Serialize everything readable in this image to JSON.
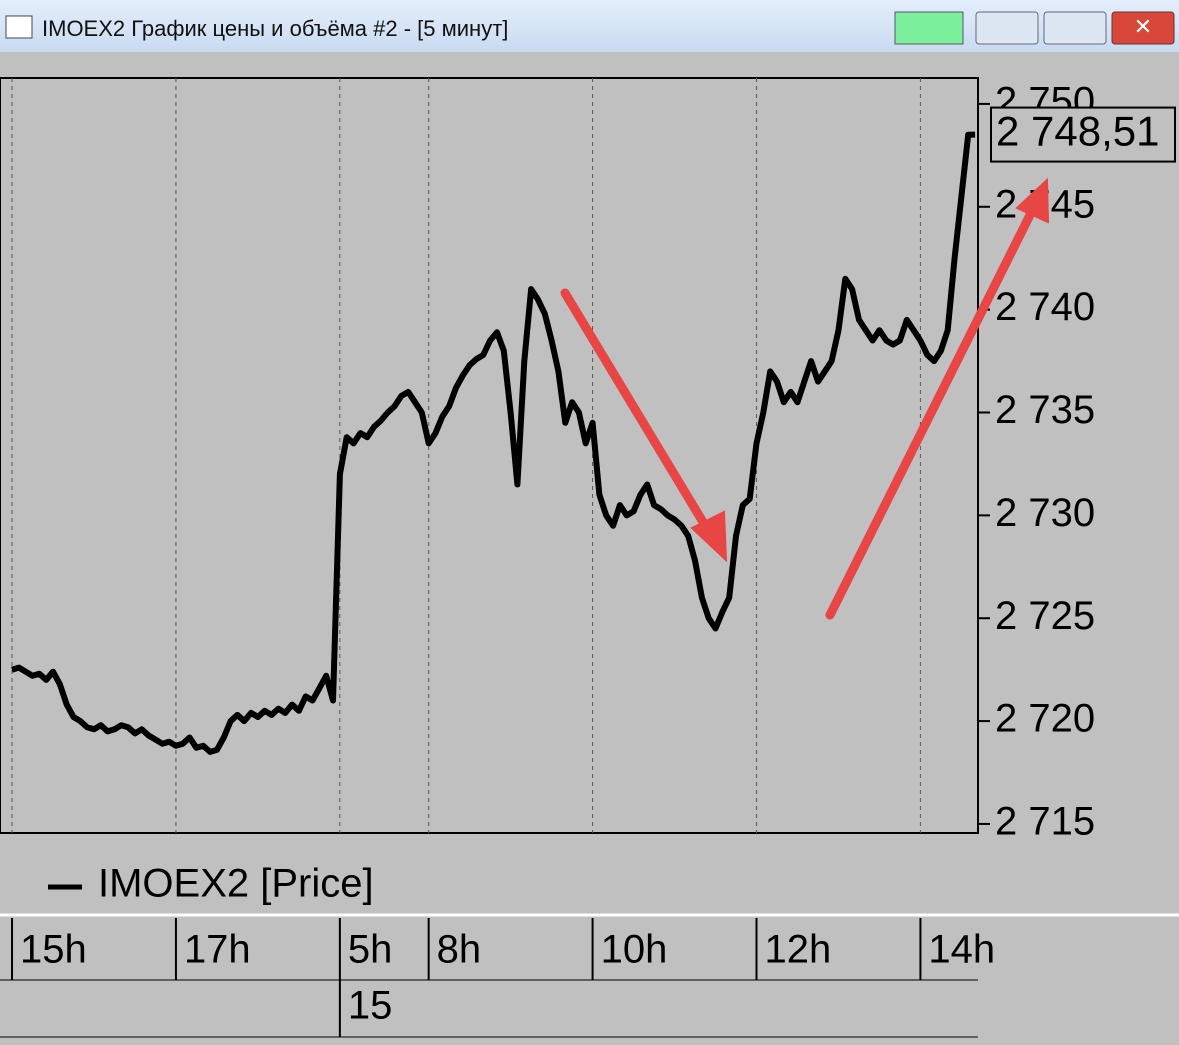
{
  "window": {
    "title": "IMOEX2 График цены и объёма #2 - [5 минут]"
  },
  "chart_data": {
    "type": "line",
    "x": [
      0,
      1,
      2,
      3,
      4,
      5,
      6,
      7,
      8,
      9,
      10,
      11,
      12,
      13,
      14,
      15,
      16,
      17,
      18,
      19,
      20,
      21,
      22,
      23,
      24,
      25,
      26,
      27,
      28,
      29,
      30,
      31,
      32,
      33,
      34,
      35,
      36,
      37,
      38,
      39,
      40,
      41,
      42,
      43,
      44,
      45,
      46,
      47,
      48,
      49,
      50,
      51,
      52,
      53,
      54,
      55,
      56,
      57,
      58,
      59,
      60,
      61,
      62,
      63,
      64,
      65,
      66,
      67,
      68,
      69,
      70,
      71,
      72,
      73,
      74,
      75,
      76,
      77,
      78,
      79,
      80,
      81,
      82,
      83,
      84,
      85,
      86,
      87,
      88,
      89,
      90,
      91,
      92,
      93,
      94,
      95,
      96,
      97,
      98,
      99,
      100,
      101,
      102,
      103,
      104,
      105,
      106,
      107,
      108,
      109,
      110,
      111,
      112,
      113,
      114,
      115,
      116,
      117,
      118,
      119,
      120,
      121,
      122,
      123,
      124,
      125,
      126,
      127,
      128,
      129,
      130,
      131,
      132,
      133,
      134,
      135,
      136,
      137,
      138,
      139,
      140,
      141
    ],
    "series": [
      {
        "name": "IMOEX2 [Price]",
        "color": "#000000",
        "values": [
          2722.5,
          2722.6,
          2722.4,
          2722.2,
          2722.3,
          2722.0,
          2722.4,
          2721.8,
          2720.8,
          2720.2,
          2720.0,
          2719.7,
          2719.6,
          2719.8,
          2719.5,
          2719.6,
          2719.8,
          2719.7,
          2719.4,
          2719.6,
          2719.3,
          2719.1,
          2718.9,
          2719.0,
          2718.8,
          2718.9,
          2719.2,
          2718.7,
          2718.8,
          2718.5,
          2718.6,
          2719.2,
          2720.0,
          2720.3,
          2720.0,
          2720.4,
          2720.2,
          2720.5,
          2720.3,
          2720.6,
          2720.4,
          2720.8,
          2720.5,
          2721.2,
          2721.0,
          2721.6,
          2722.2,
          2721.0,
          2732.0,
          2733.8,
          2733.5,
          2734.0,
          2733.8,
          2734.3,
          2734.6,
          2735.0,
          2735.3,
          2735.8,
          2736.0,
          2735.5,
          2735.0,
          2733.5,
          2734.0,
          2734.8,
          2735.3,
          2736.2,
          2736.8,
          2737.3,
          2737.6,
          2737.8,
          2738.5,
          2738.9,
          2738.0,
          2735.0,
          2731.5,
          2737.5,
          2741.0,
          2740.5,
          2739.8,
          2738.5,
          2737.0,
          2734.5,
          2735.5,
          2735.0,
          2733.5,
          2734.5,
          2731.0,
          2730.0,
          2729.5,
          2730.5,
          2730.0,
          2730.2,
          2731.0,
          2731.5,
          2730.5,
          2730.3,
          2730.0,
          2729.8,
          2729.5,
          2729.0,
          2727.8,
          2726.0,
          2725.0,
          2724.5,
          2725.3,
          2726.0,
          2729.0,
          2730.5,
          2730.8,
          2733.5,
          2735.0,
          2737.0,
          2736.5,
          2735.5,
          2736.0,
          2735.5,
          2736.5,
          2737.5,
          2736.5,
          2737.0,
          2737.5,
          2739.0,
          2741.5,
          2741.0,
          2739.5,
          2739.0,
          2738.5,
          2739.0,
          2738.5,
          2738.3,
          2738.5,
          2739.5,
          2739.0,
          2738.5,
          2737.8,
          2737.5,
          2738.0,
          2739.0,
          2742.5,
          2745.5,
          2748.5,
          2748.51
        ]
      }
    ],
    "xlim": [
      -1.76,
      141.43
    ],
    "xticks": [
      {
        "value": 0,
        "label": "15h"
      },
      {
        "value": 24,
        "label": "17h"
      },
      {
        "value": 48,
        "label": "5h"
      },
      {
        "value": 61,
        "label": "8h"
      },
      {
        "value": 85,
        "label": "10h"
      },
      {
        "value": 109,
        "label": "12h"
      },
      {
        "value": 133,
        "label": "14h"
      }
    ],
    "date_label": "15",
    "ylim": [
      2714.56,
      2751.26
    ],
    "yticks": [
      {
        "value": 2715,
        "label": "2 715"
      },
      {
        "value": 2720,
        "label": "2 720"
      },
      {
        "value": 2725,
        "label": "2 725"
      },
      {
        "value": 2730,
        "label": "2 730"
      },
      {
        "value": 2735,
        "label": "2 735"
      },
      {
        "value": 2740,
        "label": "2 740"
      },
      {
        "value": 2745,
        "label": "2 745"
      },
      {
        "value": 2750,
        "label": "2 750"
      }
    ],
    "last_price": {
      "value": 2748.51,
      "label": "2 748,51"
    },
    "grid": true
  }
}
